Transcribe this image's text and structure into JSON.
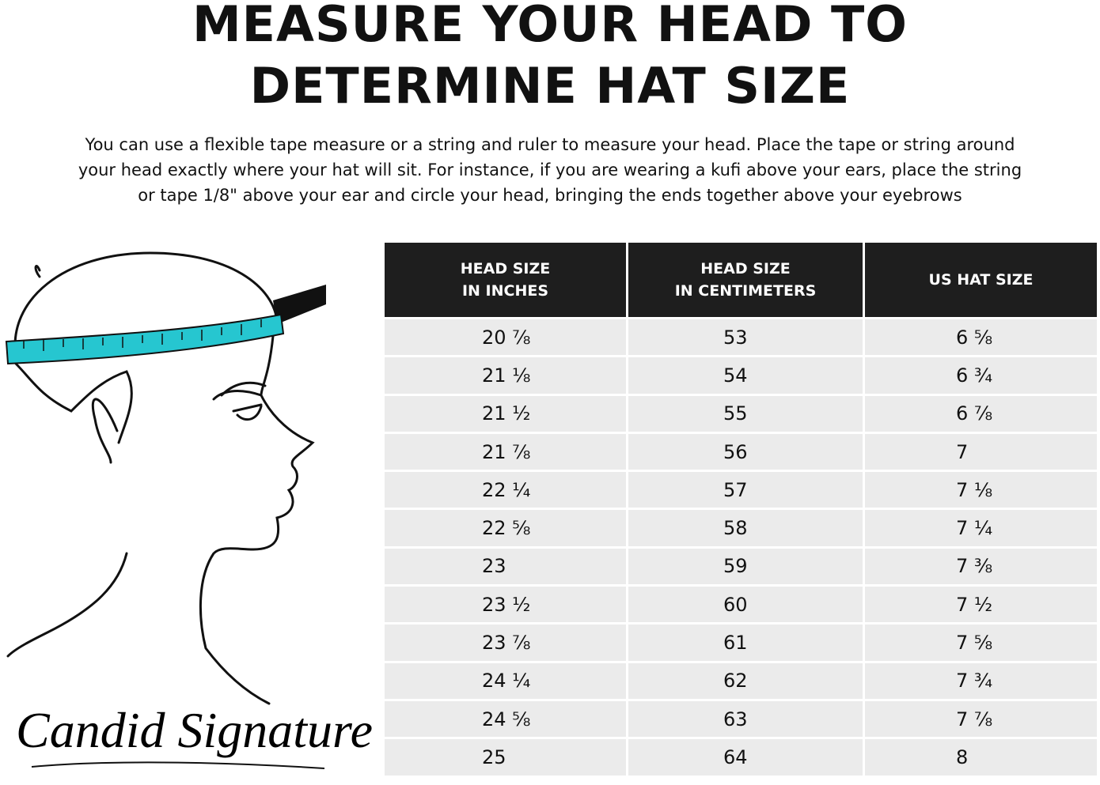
{
  "title_lines": [
    "MEASURE YOUR HEAD TO",
    "DETERMINE HAT SIZE"
  ],
  "description_lines": [
    "You can use a flexible tape measure or a string and ruler to measure your head. Place the tape or string around",
    "your head exactly where your hat will sit. For instance, if you are wearing a kufi above your ears, place the string",
    "or tape 1/8\" above your ear and circle your head, bringing the ends together above your eyebrows"
  ],
  "brand": "Candid Signature",
  "table": {
    "headers": [
      [
        "HEAD SIZE",
        "IN INCHES"
      ],
      [
        "HEAD SIZE",
        "IN CENTIMETERS"
      ],
      [
        "US HAT SIZE"
      ]
    ],
    "rows": [
      [
        "20 ⅞",
        "53",
        "6 ⅝"
      ],
      [
        "21 ⅛",
        "54",
        "6 ¾"
      ],
      [
        "21 ½",
        "55",
        "6 ⅞"
      ],
      [
        "21 ⅞",
        "56",
        "7"
      ],
      [
        "22 ¼",
        "57",
        "7 ⅛"
      ],
      [
        "22 ⅝",
        "58",
        "7 ¼"
      ],
      [
        "23",
        "59",
        "7 ⅜"
      ],
      [
        "23 ½",
        "60",
        "7 ½"
      ],
      [
        "23 ⅞",
        "61",
        "7 ⅝"
      ],
      [
        "24 ¼",
        "62",
        "7 ¾"
      ],
      [
        "24 ⅝",
        "63",
        "7 ⅞"
      ],
      [
        "25",
        "64",
        "8"
      ]
    ]
  }
}
